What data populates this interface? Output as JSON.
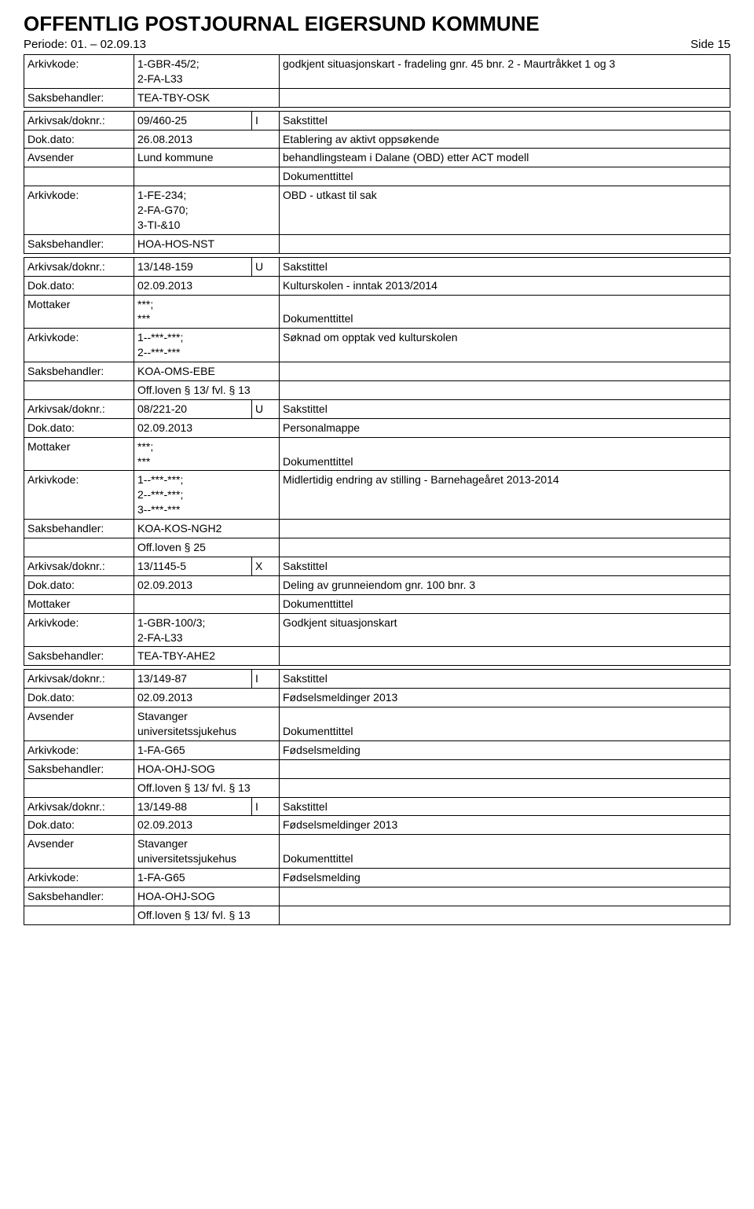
{
  "header": {
    "title": "OFFENTLIG POSTJOURNAL EIGERSUND KOMMUNE",
    "period_label": "Periode: 01. – 02.09.13",
    "page_label": "Side 15"
  },
  "labels": {
    "arkivkode": "Arkivkode:",
    "saksbehandler": "Saksbehandler:",
    "arkivsak_doknr": "Arkivsak/doknr.:",
    "dok_dato": "Dok.dato:",
    "avsender": "Avsender",
    "mottaker": "Mottaker",
    "dokumenttittel": "Dokumenttittel",
    "sakstittel": "Sakstittel"
  },
  "sections": [
    {
      "top_rows": [
        {
          "label": "Arkivkode:",
          "value": "1-GBR-45/2;\n2-FA-L33",
          "right": "godkjent situasjonskart - fradeling gnr. 45 bnr. 2 - Maurtråkket 1 og 3",
          "right_title": ""
        },
        {
          "label": "Saksbehandler:",
          "value": "TEA-TBY-OSK",
          "right": ""
        }
      ]
    },
    {
      "sak_rows": [
        {
          "label": "Arkivsak/doknr.:",
          "value": "09/460-25",
          "marker": "I",
          "right_label": "Sakstittel"
        },
        {
          "label": "Dok.dato:",
          "value": "26.08.2013",
          "right": "Etablering av aktivt oppsøkende"
        },
        {
          "label": "Avsender",
          "value": "Lund kommune",
          "right": "behandlingsteam i Dalane (OBD) etter ACT modell"
        },
        {
          "label": "",
          "value": "",
          "right": "Dokumenttittel"
        },
        {
          "label": "Arkivkode:",
          "value": "1-FE-234;\n2-FA-G70;\n3-TI-&10",
          "right": "OBD - utkast til sak"
        },
        {
          "label": "Saksbehandler:",
          "value": "HOA-HOS-NST",
          "right": ""
        }
      ]
    },
    {
      "sak_rows": [
        {
          "label": "Arkivsak/doknr.:",
          "value": "13/148-159",
          "marker": "U",
          "right_label": "Sakstittel"
        },
        {
          "label": "Dok.dato:",
          "value": "02.09.2013",
          "right": "Kulturskolen - inntak 2013/2014"
        },
        {
          "label": "Mottaker",
          "value": "***;\n***",
          "right": "Dokumenttittel",
          "right_align": "bottom"
        },
        {
          "label": "Arkivkode:",
          "value": "1--***-***;\n2--***-***",
          "right": "Søknad om opptak ved kulturskolen"
        },
        {
          "label": "Saksbehandler:",
          "value": "KOA-OMS-EBE",
          "right": ""
        },
        {
          "label": "",
          "value": "Off.loven § 13/ fvl. § 13",
          "right": ""
        },
        {
          "label": "Arkivsak/doknr.:",
          "value": "08/221-20",
          "marker": "U",
          "right_label": "Sakstittel"
        },
        {
          "label": "Dok.dato:",
          "value": "02.09.2013",
          "right": "Personalmappe"
        },
        {
          "label": "Mottaker",
          "value": "***;\n***",
          "right": "Dokumenttittel",
          "right_align": "bottom"
        },
        {
          "label": "Arkivkode:",
          "value": "1--***-***;\n2--***-***;\n3--***-***",
          "right": "Midlertidig endring av stilling - Barnehageåret 2013-2014"
        },
        {
          "label": "Saksbehandler:",
          "value": "KOA-KOS-NGH2",
          "right": ""
        },
        {
          "label": "",
          "value": "Off.loven § 25",
          "right": ""
        },
        {
          "label": "Arkivsak/doknr.:",
          "value": "13/1145-5",
          "marker": "X",
          "right_label": "Sakstittel"
        },
        {
          "label": "Dok.dato:",
          "value": "02.09.2013",
          "right": "Deling av grunneiendom gnr. 100 bnr. 3"
        },
        {
          "label": "Mottaker",
          "value": "",
          "right": "Dokumenttittel",
          "right_align": "bottom"
        },
        {
          "label": "Arkivkode:",
          "value": "1-GBR-100/3;\n2-FA-L33",
          "right": "Godkjent situasjonskart"
        },
        {
          "label": "Saksbehandler:",
          "value": "TEA-TBY-AHE2",
          "right": ""
        }
      ]
    },
    {
      "sak_rows": [
        {
          "label": "Arkivsak/doknr.:",
          "value": "13/149-87",
          "marker": "I",
          "right_label": "Sakstittel"
        },
        {
          "label": "Dok.dato:",
          "value": "02.09.2013",
          "right": "Fødselsmeldinger 2013"
        },
        {
          "label": "Avsender",
          "value": "Stavanger universitetssjukehus",
          "right": "Dokumenttittel",
          "right_align": "bottom"
        },
        {
          "label": "Arkivkode:",
          "value": "1-FA-G65",
          "right": "Fødselsmelding"
        },
        {
          "label": "Saksbehandler:",
          "value": "HOA-OHJ-SOG",
          "right": ""
        },
        {
          "label": "",
          "value": "Off.loven § 13/ fvl. § 13",
          "right": ""
        },
        {
          "label": "Arkivsak/doknr.:",
          "value": "13/149-88",
          "marker": "I",
          "right_label": "Sakstittel"
        },
        {
          "label": "Dok.dato:",
          "value": "02.09.2013",
          "right": "Fødselsmeldinger 2013"
        },
        {
          "label": "Avsender",
          "value": "Stavanger universitetssjukehus",
          "right": "Dokumenttittel",
          "right_align": "bottom"
        },
        {
          "label": "Arkivkode:",
          "value": "1-FA-G65",
          "right": "Fødselsmelding"
        },
        {
          "label": "Saksbehandler:",
          "value": "HOA-OHJ-SOG",
          "right": ""
        },
        {
          "label": "",
          "value": "Off.loven § 13/ fvl. § 13",
          "right": ""
        }
      ]
    }
  ],
  "style": {
    "border_color": "#000000",
    "background": "#ffffff",
    "font_family": "Arial",
    "header_fontsize": 26,
    "body_fontsize": 14,
    "col_label_width": 140,
    "col_value_width": 185,
    "col_value_narrow_width": 150,
    "col_marker_width": 35
  }
}
